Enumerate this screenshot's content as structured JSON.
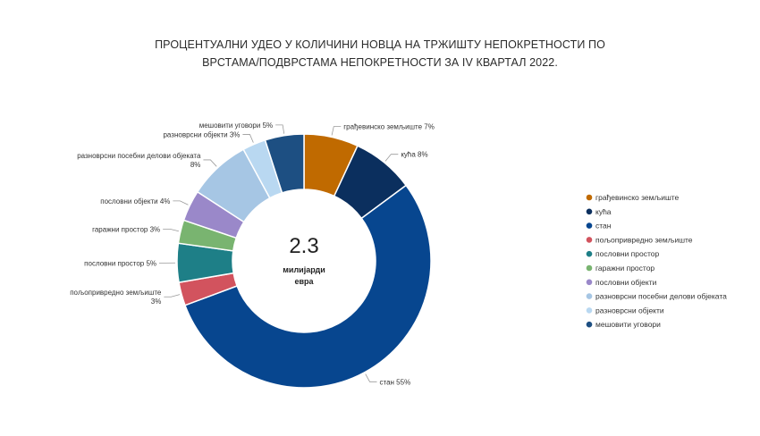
{
  "title_line1": "ПРОЦЕНТУАЛНИ УДЕО У КОЛИЧИНИ НОВЦА НА ТРЖИШТУ НЕПОКРЕТНОСТИ ПО",
  "title_line2": "ВРСТАМА/ПОДВРСТАМА НЕПОКРЕТНОСТИ ЗА IV КВАРТАЛ 2022.",
  "center": {
    "value": "2.3",
    "unit_line1": "милијарди",
    "unit_line2": "евра"
  },
  "chart_data": {
    "type": "pie",
    "donut": true,
    "title": "ПРОЦЕНТУАЛНИ УДЕО У КОЛИЧИНИ НОВЦА НА ТРЖИШТУ НЕПОКРЕТНОСТИ ПО ВРСТАМА/ПОДВРСТАМА НЕПОКРЕТНОСТИ ЗА IV КВАРТАЛ 2022.",
    "legend_position": "right",
    "slices": [
      {
        "name": "грађевинско земљиште",
        "value": 7,
        "label": "грађевинско земљиште 7%",
        "color": "#c06a00"
      },
      {
        "name": "кућа",
        "value": 8,
        "label": "кућа 8%",
        "color": "#0b2f5e"
      },
      {
        "name": "стан",
        "value": 55,
        "label": "стан 55%",
        "color": "#07468f"
      },
      {
        "name": "пољопривредно земљиште",
        "value": 3,
        "label": [
          "пољопривредно земљиште",
          "3%"
        ],
        "color": "#d2535e"
      },
      {
        "name": "пословни простор",
        "value": 5,
        "label": "пословни простор 5%",
        "color": "#1e7f87"
      },
      {
        "name": "гаражни простор",
        "value": 3,
        "label": "гаражни простор 3%",
        "color": "#79b470"
      },
      {
        "name": "пословни објекти",
        "value": 4,
        "label": "пословни објекти 4%",
        "color": "#9a88c9"
      },
      {
        "name": "разноврсни посебни делови објеката",
        "value": 8,
        "label": [
          "разноврсни посебни делови објеката",
          "8%"
        ],
        "color": "#a6c6e4"
      },
      {
        "name": "разноврсни објекти",
        "value": 3,
        "label": "разноврсни објекти 3%",
        "color": "#b9d8f1"
      },
      {
        "name": "мешовити уговори",
        "value": 5,
        "label": "мешовити уговори 5%",
        "color": "#1d4f82"
      }
    ]
  }
}
